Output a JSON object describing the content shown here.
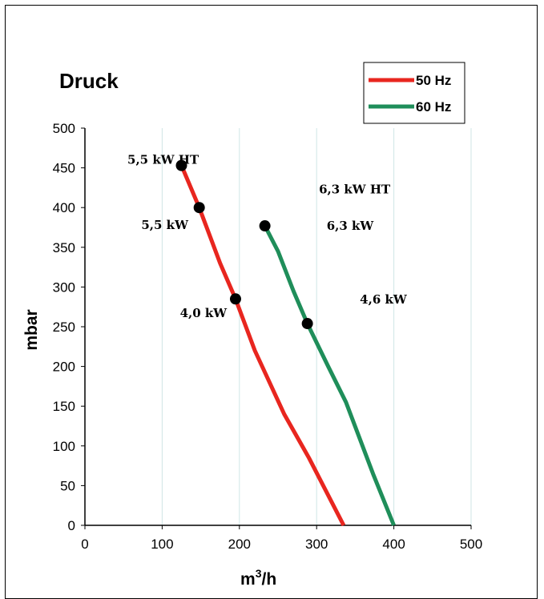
{
  "chart_data": {
    "type": "line",
    "title": "Druck",
    "xlabel": "m",
    "xlabel_sup": "3",
    "xlabel_suffix": "/h",
    "ylabel": "mbar",
    "xlim": [
      0,
      500
    ],
    "ylim": [
      0,
      500
    ],
    "x_ticks": [
      "0",
      "100",
      "200",
      "300",
      "400",
      "500"
    ],
    "y_ticks": [
      "0",
      "50",
      "100",
      "150",
      "200",
      "250",
      "300",
      "350",
      "400",
      "450",
      "500"
    ],
    "grid": "vertical",
    "legend_position": "top-right",
    "series": [
      {
        "name": "50 Hz",
        "color": "#e8261f",
        "points": [
          [
            125,
            453
          ],
          [
            148,
            400
          ],
          [
            175,
            330
          ],
          [
            195,
            285
          ],
          [
            220,
            220
          ],
          [
            258,
            140
          ],
          [
            290,
            85
          ],
          [
            335,
            0
          ]
        ],
        "markers": [
          [
            125,
            453
          ],
          [
            148,
            400
          ],
          [
            195,
            285
          ]
        ]
      },
      {
        "name": "60 Hz",
        "color": "#1f8e5a",
        "points": [
          [
            233,
            377
          ],
          [
            250,
            345
          ],
          [
            270,
            295
          ],
          [
            288,
            254
          ],
          [
            315,
            200
          ],
          [
            338,
            155
          ],
          [
            373,
            65
          ],
          [
            400,
            0
          ]
        ],
        "markers": [
          [
            233,
            377
          ],
          [
            288,
            254
          ]
        ]
      }
    ],
    "annotations": [
      {
        "text": "5,5 kW HT",
        "x": 55,
        "y": 455
      },
      {
        "text": "5,5 kW",
        "x": 73,
        "y": 373
      },
      {
        "text": "4,0 kW",
        "x": 123,
        "y": 262
      },
      {
        "text": "6,3 kW HT",
        "x": 303,
        "y": 418
      },
      {
        "text": "6,3 kW",
        "x": 313,
        "y": 372
      },
      {
        "text": "4,6 kW",
        "x": 356,
        "y": 279
      }
    ]
  }
}
